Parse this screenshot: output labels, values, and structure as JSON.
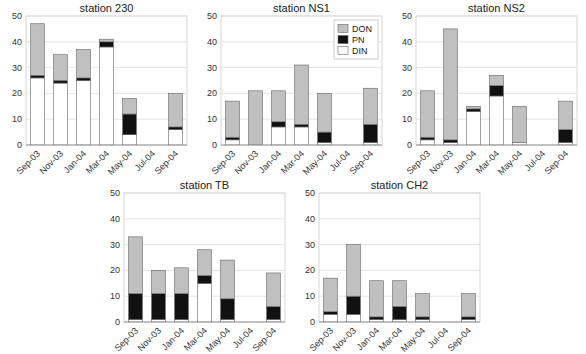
{
  "chart_data": [
    {
      "type": "bar",
      "title": "station 230",
      "stacked": true,
      "grid": true,
      "categories": [
        "Sep-03",
        "Nov-03",
        "Jan-04",
        "Mar-04",
        "May-04",
        "Jul-04",
        "Sep-04"
      ],
      "series": [
        {
          "name": "DIN",
          "color": "#ffffff",
          "values": [
            26,
            24,
            25,
            38,
            4,
            0,
            6
          ]
        },
        {
          "name": "PN",
          "color": "#111111",
          "values": [
            1,
            1,
            1,
            2,
            8,
            0,
            1
          ]
        },
        {
          "name": "DON",
          "color": "#c0c0c0",
          "values": [
            20,
            10,
            11,
            1,
            6,
            0,
            13
          ]
        }
      ],
      "ylim": [
        0,
        50
      ],
      "yticks": [
        0,
        10,
        20,
        30,
        40,
        50
      ]
    },
    {
      "type": "bar",
      "title": "station NS1",
      "stacked": true,
      "grid": true,
      "legend": "upper right",
      "categories": [
        "Sep-03",
        "Nov-03",
        "Jan-04",
        "Mar-04",
        "May-04",
        "Jul-04",
        "Sep-04"
      ],
      "series": [
        {
          "name": "DIN",
          "color": "#ffffff",
          "values": [
            2,
            0,
            7,
            7,
            1,
            0,
            1
          ]
        },
        {
          "name": "PN",
          "color": "#111111",
          "values": [
            1,
            0,
            2,
            1,
            4,
            0,
            7
          ]
        },
        {
          "name": "DON",
          "color": "#c0c0c0",
          "values": [
            14,
            21,
            12,
            23,
            15,
            0,
            14
          ]
        }
      ],
      "ylim": [
        0,
        50
      ],
      "yticks": [
        0,
        10,
        20,
        30,
        40,
        50
      ]
    },
    {
      "type": "bar",
      "title": "station NS2",
      "stacked": true,
      "grid": true,
      "categories": [
        "Sep-03",
        "Nov-03",
        "Jan-04",
        "Mar-04",
        "May-04",
        "Jul-04",
        "Sep-04"
      ],
      "series": [
        {
          "name": "DIN",
          "color": "#ffffff",
          "values": [
            2,
            1,
            13,
            19,
            1,
            0,
            1
          ]
        },
        {
          "name": "PN",
          "color": "#111111",
          "values": [
            1,
            1,
            1,
            4,
            0,
            0,
            5
          ]
        },
        {
          "name": "DON",
          "color": "#c0c0c0",
          "values": [
            18,
            43,
            1,
            4,
            14,
            0,
            11
          ]
        }
      ],
      "ylim": [
        0,
        50
      ],
      "yticks": [
        0,
        10,
        20,
        30,
        40,
        50
      ]
    },
    {
      "type": "bar",
      "title": "station TB",
      "stacked": true,
      "grid": true,
      "categories": [
        "Sep-03",
        "Nov-03",
        "Jan-04",
        "Mar-04",
        "May-04",
        "Jul-04",
        "Sep-04"
      ],
      "series": [
        {
          "name": "DIN",
          "color": "#ffffff",
          "values": [
            1,
            1,
            1,
            15,
            1,
            0,
            1
          ]
        },
        {
          "name": "PN",
          "color": "#111111",
          "values": [
            10,
            10,
            10,
            3,
            8,
            0,
            5
          ]
        },
        {
          "name": "DON",
          "color": "#c0c0c0",
          "values": [
            22,
            9,
            10,
            10,
            15,
            0,
            13
          ]
        }
      ],
      "ylim": [
        0,
        50
      ],
      "yticks": [
        0,
        10,
        20,
        30,
        40,
        50
      ]
    },
    {
      "type": "bar",
      "title": "station CH2",
      "stacked": true,
      "grid": true,
      "categories": [
        "Sep-03",
        "Nov-03",
        "Jan-04",
        "Mar-04",
        "May-04",
        "Jul-04",
        "Sep-04"
      ],
      "series": [
        {
          "name": "DIN",
          "color": "#ffffff",
          "values": [
            3,
            3,
            1,
            1,
            1,
            0,
            1
          ]
        },
        {
          "name": "PN",
          "color": "#111111",
          "values": [
            1,
            7,
            1,
            5,
            1,
            0,
            1
          ]
        },
        {
          "name": "DON",
          "color": "#c0c0c0",
          "values": [
            13,
            20,
            14,
            10,
            9,
            0,
            9
          ]
        }
      ],
      "ylim": [
        0,
        50
      ],
      "yticks": [
        0,
        10,
        20,
        30,
        40,
        50
      ]
    }
  ]
}
